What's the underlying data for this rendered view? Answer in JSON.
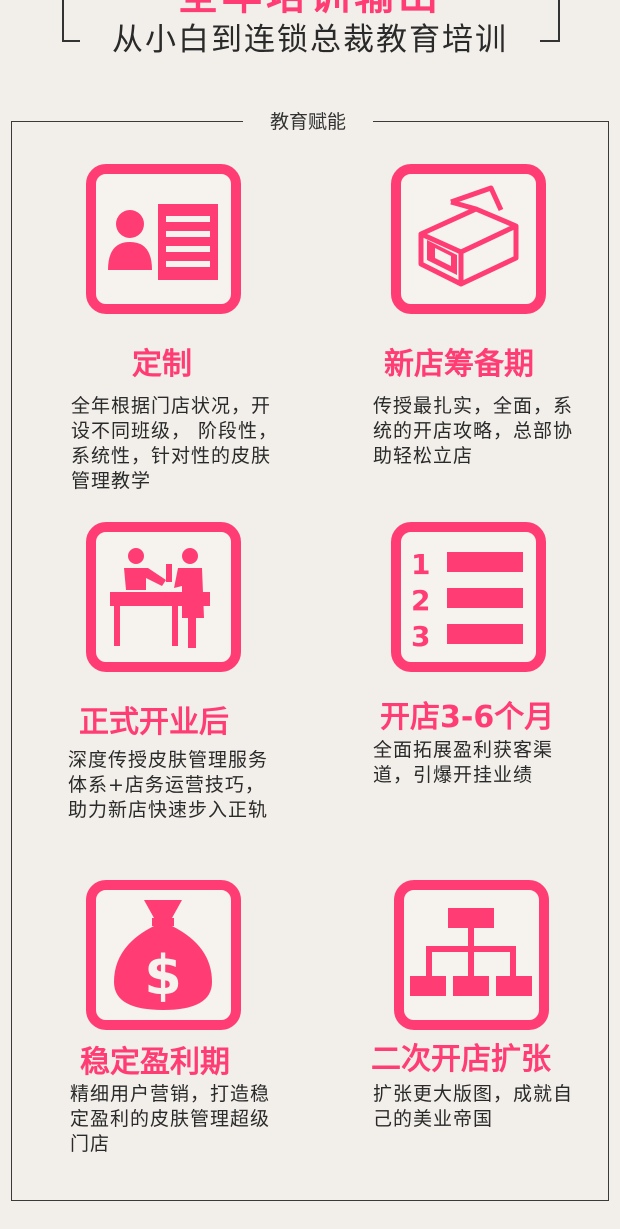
{
  "header": {
    "top_title": "全年培训输出",
    "subtitle": "从小白到连锁总裁教育培训"
  },
  "section": {
    "label": "教育赋能"
  },
  "colors": {
    "accent": "#ff3d74",
    "background": "#f2efea",
    "text": "#2a2a2a"
  },
  "items": [
    {
      "title": "定制",
      "icon": "id-card-icon",
      "desc": "全年根据门店状况，开设不同班级， 阶段性，系统性，针对性的皮肤管理教学"
    },
    {
      "title": "新店筹备期",
      "icon": "box-icon",
      "desc": "传授最扎实，全面，系统的开店攻略，总部协助轻松立店"
    },
    {
      "title": "正式开业后",
      "icon": "reception-icon",
      "desc": "深度传授皮肤管理服务体系+店务运营技巧，助力新店快速步入正轨"
    },
    {
      "title": "开店3-6个月",
      "icon": "numbered-list-icon",
      "desc": "全面拓展盈利获客渠道，引爆开挂业绩"
    },
    {
      "title": "稳定盈利期",
      "icon": "money-bag-icon",
      "desc": "精细用户营销，打造稳定盈利的皮肤管理超级门店"
    },
    {
      "title": "二次开店扩张",
      "icon": "org-chart-icon",
      "desc": "扩张更大版图，成就自己的美业帝国"
    }
  ]
}
